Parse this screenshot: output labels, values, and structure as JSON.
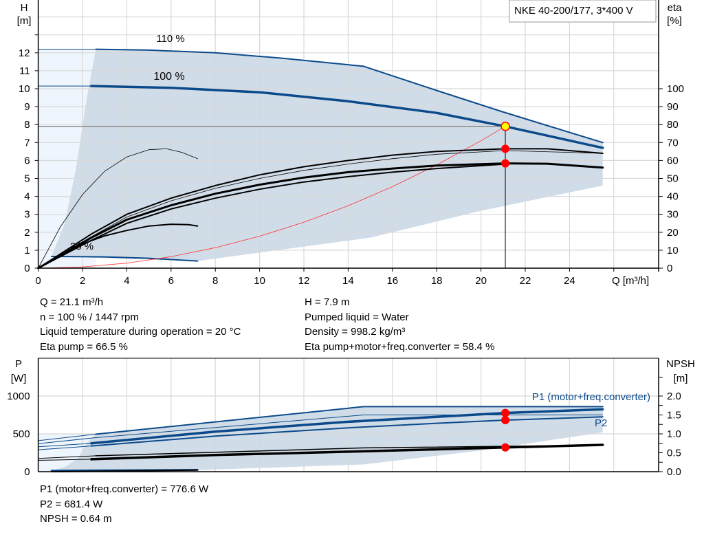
{
  "chart_data": [
    {
      "type": "line",
      "title": "NKE 40-200/177, 3*400 V",
      "xlabel": "Q [m³/h]",
      "ylabel_left_lines": [
        "H",
        "[m]"
      ],
      "ylabel_right_lines": [
        "eta",
        "[%]"
      ],
      "xlim": [
        0,
        28
      ],
      "ylim_left": [
        0,
        14.9
      ],
      "ylim_right": [
        0,
        149
      ],
      "x_ticks": [
        "0",
        "2",
        "4",
        "6",
        "8",
        "10",
        "12",
        "14",
        "16",
        "18",
        "20",
        "22",
        "24"
      ],
      "y_left_ticks": [
        "0",
        "1",
        "2",
        "3",
        "4",
        "5",
        "6",
        "7",
        "8",
        "9",
        "10",
        "11",
        "12"
      ],
      "y_right_ticks": [
        "0",
        "10",
        "20",
        "30",
        "40",
        "50",
        "60",
        "70",
        "80",
        "90",
        "100"
      ],
      "grid": true,
      "annotations": [
        "110 %",
        "100 %",
        "25 %"
      ],
      "colors": {
        "curve": "#0b4a8a",
        "range_fill": "#d0dce8",
        "low_fill": "#eef5fc",
        "system": "#ff3030",
        "point": "#ff0000",
        "duty_point": "#ffff00"
      },
      "range_area": {
        "upper": [
          [
            2.6,
            12.2
          ],
          [
            8,
            12.0
          ],
          [
            14.7,
            11.25
          ],
          [
            25.5,
            7.0
          ]
        ],
        "lower": [
          [
            25.5,
            4.6
          ],
          [
            20,
            3.2
          ],
          [
            15,
            1.7
          ],
          [
            7.2,
            0.4
          ],
          [
            0.6,
            0.65
          ]
        ],
        "left_edge": [
          [
            0.6,
            0.65
          ],
          [
            1.2,
            2.5
          ],
          [
            1.7,
            5.5
          ],
          [
            2.2,
            9.5
          ],
          [
            2.6,
            12.2
          ]
        ]
      },
      "series": [
        {
          "role": "H 110 %",
          "width": 2,
          "color": "#0b4a8a",
          "points": [
            [
              2.6,
              12.2
            ],
            [
              5,
              12.15
            ],
            [
              8,
              12.0
            ],
            [
              11,
              11.7
            ],
            [
              14.7,
              11.25
            ],
            [
              18,
              9.9
            ],
            [
              21,
              8.7
            ],
            [
              25.5,
              7.0
            ]
          ]
        },
        {
          "role": "H 110 % extension",
          "width": 1,
          "color": "#0b4a8a",
          "points": [
            [
              0,
              12.2
            ],
            [
              2.6,
              12.2
            ]
          ]
        },
        {
          "role": "H 100 %",
          "width": 3.5,
          "color": "#0b4a8a",
          "points": [
            [
              2.4,
              10.15
            ],
            [
              6,
              10.05
            ],
            [
              10,
              9.8
            ],
            [
              14,
              9.3
            ],
            [
              18,
              8.65
            ],
            [
              21.1,
              7.9
            ],
            [
              25.5,
              6.7
            ]
          ]
        },
        {
          "role": "H 100 % extension",
          "width": 1,
          "color": "#0b4a8a",
          "points": [
            [
              0,
              10.15
            ],
            [
              2.4,
              10.15
            ]
          ]
        },
        {
          "role": "H 25 %",
          "width": 2,
          "color": "#0b4a8a",
          "points": [
            [
              0.6,
              0.65
            ],
            [
              3,
              0.63
            ],
            [
              5,
              0.55
            ],
            [
              7.2,
              0.4
            ]
          ]
        },
        {
          "role": "system curve",
          "width": 0.8,
          "color": "#ff3030",
          "points": [
            [
              0,
              0
            ],
            [
              2,
              0.07
            ],
            [
              4,
              0.28
            ],
            [
              6,
              0.64
            ],
            [
              8,
              1.14
            ],
            [
              10,
              1.78
            ],
            [
              12,
              2.56
            ],
            [
              14,
              3.48
            ],
            [
              16,
              4.54
            ],
            [
              18,
              5.75
            ],
            [
              20,
              7.1
            ],
            [
              21.1,
              7.9
            ]
          ]
        },
        {
          "role": "eta low speed thin",
          "width": 0.8,
          "color": "#000",
          "points": [
            [
              0,
              0
            ],
            [
              1,
              2.3
            ],
            [
              2,
              4.1
            ],
            [
              3,
              5.4
            ],
            [
              4,
              6.2
            ],
            [
              5,
              6.6
            ],
            [
              5.8,
              6.65
            ],
            [
              6.5,
              6.45
            ],
            [
              7.2,
              6.1
            ]
          ]
        },
        {
          "role": "eta pump",
          "width": 2,
          "color": "#000",
          "points": [
            [
              0,
              0
            ],
            [
              2.4,
              1.9
            ],
            [
              4,
              3.0
            ],
            [
              6,
              3.9
            ],
            [
              8,
              4.6
            ],
            [
              10,
              5.2
            ],
            [
              12,
              5.65
            ],
            [
              14,
              6.0
            ],
            [
              16,
              6.3
            ],
            [
              18,
              6.5
            ],
            [
              21.1,
              6.65
            ],
            [
              23,
              6.65
            ],
            [
              25.5,
              6.4
            ]
          ]
        },
        {
          "role": "eta pump thin",
          "width": 0.8,
          "color": "#000",
          "points": [
            [
              0,
              0
            ],
            [
              2.4,
              1.75
            ],
            [
              4,
              2.85
            ],
            [
              6,
              3.75
            ],
            [
              8,
              4.45
            ],
            [
              10,
              5.0
            ],
            [
              12,
              5.45
            ],
            [
              14,
              5.8
            ],
            [
              16,
              6.1
            ],
            [
              18,
              6.35
            ],
            [
              21.1,
              6.55
            ],
            [
              25.5,
              6.4
            ]
          ]
        },
        {
          "role": "eta total",
          "width": 3,
          "color": "#000",
          "points": [
            [
              0,
              0
            ],
            [
              2.4,
              1.7
            ],
            [
              4,
              2.7
            ],
            [
              6,
              3.5
            ],
            [
              8,
              4.15
            ],
            [
              10,
              4.65
            ],
            [
              12,
              5.05
            ],
            [
              14,
              5.35
            ],
            [
              16,
              5.55
            ],
            [
              18,
              5.72
            ],
            [
              21.1,
              5.84
            ],
            [
              23,
              5.82
            ],
            [
              25.5,
              5.6
            ]
          ]
        },
        {
          "role": "eta total lower",
          "width": 2,
          "color": "#000",
          "points": [
            [
              0,
              0
            ],
            [
              2.4,
              1.55
            ],
            [
              4,
              2.5
            ],
            [
              6,
              3.3
            ],
            [
              8,
              3.9
            ],
            [
              10,
              4.4
            ],
            [
              12,
              4.8
            ],
            [
              14,
              5.1
            ],
            [
              16,
              5.35
            ],
            [
              18,
              5.55
            ],
            [
              21.1,
              5.8
            ]
          ]
        },
        {
          "role": "eta 25 %",
          "width": 2,
          "color": "#000",
          "points": [
            [
              0,
              0
            ],
            [
              1,
              0.75
            ],
            [
              2,
              1.35
            ],
            [
              3,
              1.8
            ],
            [
              4,
              2.1
            ],
            [
              5,
              2.35
            ],
            [
              6,
              2.45
            ],
            [
              6.8,
              2.42
            ],
            [
              7.2,
              2.35
            ]
          ]
        }
      ],
      "duty_point": {
        "Q": 21.1,
        "H": 7.9
      },
      "points": [
        {
          "Q": 21.1,
          "eta": 66.5
        },
        {
          "Q": 21.1,
          "eta": 58.4
        }
      ]
    },
    {
      "type": "line",
      "ylabel_left_lines": [
        "P",
        "[W]"
      ],
      "ylabel_right_lines": [
        "NPSH",
        "[m]"
      ],
      "xlim": [
        0,
        28
      ],
      "ylim_left": [
        0,
        1509
      ],
      "ylim_right": [
        0,
        3.02
      ],
      "y_left_ticks": [
        "0",
        "500",
        "1000"
      ],
      "y_right_ticks": [
        "0.0",
        "0.5",
        "1.0",
        "1.5",
        "2.0"
      ],
      "legend": [
        "P1 (motor+freq.converter)",
        "P2"
      ],
      "range_area": {
        "upper": [
          [
            2.6,
            495
          ],
          [
            14.7,
            860
          ],
          [
            25.5,
            860
          ]
        ],
        "lower": [
          [
            25.5,
            520
          ],
          [
            20,
            280
          ],
          [
            14.7,
            95
          ],
          [
            7.2,
            20
          ],
          [
            0.6,
            15
          ]
        ],
        "left_edge": [
          [
            0.6,
            15
          ],
          [
            1.2,
            60
          ],
          [
            1.8,
            180
          ],
          [
            2.2,
            380
          ],
          [
            2.6,
            495
          ]
        ]
      },
      "series": [
        {
          "role": "P1 110 %",
          "width": 2,
          "color": "#0b4a8a",
          "points": [
            [
              2.6,
              495
            ],
            [
              14.7,
              860
            ],
            [
              25.5,
              860
            ]
          ]
        },
        {
          "role": "P2 110 %",
          "width": 1,
          "color": "#0b4a8a",
          "points": [
            [
              2.6,
              450
            ],
            [
              14.7,
              750
            ],
            [
              25.5,
              750
            ]
          ]
        },
        {
          "role": "P1 (motor+freq.converter)",
          "width": 3.5,
          "color": "#0b4a8a",
          "points": [
            [
              2.4,
              375
            ],
            [
              8,
              530
            ],
            [
              14,
              660
            ],
            [
              18,
              725
            ],
            [
              21.1,
              776.6
            ],
            [
              25.5,
              825
            ]
          ]
        },
        {
          "role": "P2",
          "width": 2,
          "color": "#0b4a8a",
          "points": [
            [
              2.4,
              340
            ],
            [
              8,
              470
            ],
            [
              14,
              580
            ],
            [
              18,
              640
            ],
            [
              21.1,
              681.4
            ],
            [
              25.5,
              725
            ]
          ]
        },
        {
          "role": "P1 low thin",
          "width": 1,
          "color": "#0b4a8a",
          "points": [
            [
              0,
              410
            ],
            [
              2.6,
              495
            ]
          ]
        },
        {
          "role": "P2 low thin",
          "width": 1,
          "color": "#0b4a8a",
          "points": [
            [
              0,
              370
            ],
            [
              2.6,
              450
            ]
          ]
        },
        {
          "role": "P1 low ext",
          "width": 1,
          "color": "#0b4a8a",
          "points": [
            [
              0,
              330
            ],
            [
              2.4,
              375
            ]
          ]
        },
        {
          "role": "P2 low ext",
          "width": 1,
          "color": "#0b4a8a",
          "points": [
            [
              0,
              290
            ],
            [
              2.4,
              340
            ]
          ]
        },
        {
          "role": "NPSH",
          "width": 3.5,
          "color": "#000",
          "npsh": true,
          "points": [
            [
              2.4,
              0.33
            ],
            [
              8,
              0.44
            ],
            [
              14,
              0.53
            ],
            [
              21.1,
              0.64
            ],
            [
              25.5,
              0.71
            ]
          ]
        },
        {
          "role": "NPSH 110 %",
          "width": 1.5,
          "color": "#000",
          "npsh": true,
          "points": [
            [
              2.6,
              0.42
            ],
            [
              14.7,
              0.63
            ],
            [
              25.5,
              0.7
            ]
          ]
        },
        {
          "role": "NPSH low ext",
          "width": 1,
          "color": "#000",
          "npsh": true,
          "points": [
            [
              0,
              0.3
            ],
            [
              2.4,
              0.33
            ]
          ]
        },
        {
          "role": "NPSH low ext 2",
          "width": 1,
          "color": "#000",
          "npsh": true,
          "points": [
            [
              0,
              0.35
            ],
            [
              2.6,
              0.42
            ]
          ]
        },
        {
          "role": "P 25 %",
          "width": 2.5,
          "color": "#0b4a8a",
          "points": [
            [
              0.6,
              15
            ],
            [
              7.2,
              25
            ]
          ]
        },
        {
          "role": "NPSH 25 %",
          "width": 2,
          "color": "#000",
          "npsh": true,
          "points": [
            [
              0.6,
              0.0
            ],
            [
              7.2,
              0.04
            ]
          ]
        }
      ],
      "points": [
        {
          "Q": 21.1,
          "P": 776.6
        },
        {
          "Q": 21.1,
          "P": 681.4
        },
        {
          "Q": 21.1,
          "NPSH": 0.64
        }
      ]
    }
  ],
  "info_top": {
    "left": [
      "Q = 21.1 m³/h",
      "n = 100 % / 1447 rpm",
      "Liquid temperature during operation = 20 °C",
      "Eta pump = 66.5 %"
    ],
    "right": [
      "H = 7.9 m",
      "Pumped liquid = Water",
      "Density = 998.2 kg/m³",
      "Eta pump+motor+freq.converter = 58.4 %"
    ]
  },
  "info_bottom": [
    "P1 (motor+freq.converter) = 776.6 W",
    "P2 = 681.4 W",
    "NPSH = 0.64 m"
  ]
}
